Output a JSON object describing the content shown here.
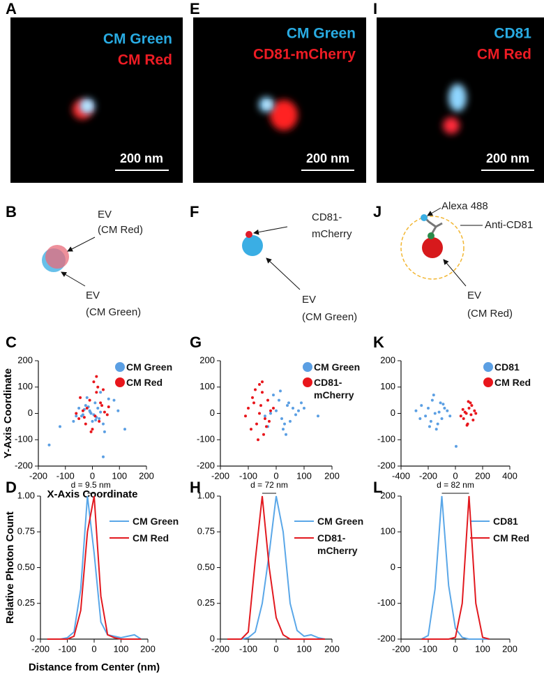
{
  "panel_labels": [
    "A",
    "E",
    "I",
    "B",
    "F",
    "J",
    "C",
    "G",
    "K",
    "D",
    "H",
    "L"
  ],
  "images": [
    {
      "labels": [
        "CM Green",
        "CM Red"
      ],
      "scale_bar": "200 nm"
    },
    {
      "labels": [
        "CM Green",
        "CD81-mCherry"
      ],
      "scale_bar": "200 nm"
    },
    {
      "labels": [
        "CD81",
        "CM Red"
      ],
      "scale_bar": "200 nm"
    }
  ],
  "diagrams": [
    {
      "labels": [
        [
          "EV",
          "(CM Red)"
        ],
        [
          "EV",
          "(CM Green)"
        ]
      ]
    },
    {
      "labels": [
        [
          "CD81-",
          "mCherry"
        ],
        [
          "EV",
          "(CM Green)"
        ]
      ]
    },
    {
      "labels": [
        [
          "Alexa 488"
        ],
        [
          "Anti-CD81"
        ],
        [
          "EV",
          "(CM Red)"
        ]
      ]
    }
  ],
  "chart_data": [
    {
      "type": "scatter",
      "xlabel": "X-Axis Coordinate",
      "ylabel": "Y-Axis Coordinate",
      "xlim": [
        -200,
        200
      ],
      "ylim": [
        -200,
        200
      ],
      "xticks": [
        -200,
        -100,
        0,
        100,
        200
      ],
      "yticks": [
        -200,
        -100,
        0,
        100,
        200
      ],
      "series": [
        {
          "name": "CM Green",
          "color": "#5b9fe3",
          "x": [
            -10,
            5,
            20,
            -25,
            15,
            -5,
            30,
            -40,
            10,
            0,
            -15,
            25,
            -30,
            40,
            -60,
            60,
            -120,
            -160,
            45,
            -20,
            40,
            -8,
            12,
            -35,
            80,
            120,
            -70,
            30,
            -50,
            95
          ],
          "y": [
            10,
            -5,
            20,
            30,
            -15,
            0,
            5,
            -10,
            40,
            -30,
            25,
            -20,
            15,
            -40,
            -10,
            55,
            -50,
            -120,
            -70,
            60,
            -165,
            5,
            -25,
            -5,
            50,
            -60,
            -30,
            80,
            20,
            10
          ]
        },
        {
          "name": "CM Red",
          "color": "#e8161c",
          "x": [
            -20,
            10,
            30,
            -35,
            25,
            -10,
            45,
            -50,
            15,
            5,
            -25,
            35,
            0,
            55,
            -45,
            60,
            20,
            -5,
            40,
            -60,
            15,
            -30
          ],
          "y": [
            20,
            -10,
            40,
            10,
            -30,
            50,
            5,
            -20,
            80,
            120,
            -40,
            30,
            -60,
            -5,
            60,
            25,
            100,
            -70,
            90,
            0,
            140,
            -15
          ]
        }
      ]
    },
    {
      "type": "scatter",
      "xlim": [
        -200,
        200
      ],
      "ylim": [
        -200,
        200
      ],
      "xticks": [
        -200,
        -100,
        0,
        100,
        200
      ],
      "yticks": [
        -200,
        -100,
        0,
        100,
        200
      ],
      "series": [
        {
          "name": "CM Green",
          "color": "#5b9fe3",
          "x": [
            0,
            20,
            40,
            -20,
            10,
            30,
            60,
            -40,
            50,
            80,
            -10,
            25,
            45,
            70,
            100,
            150,
            -30,
            15,
            35,
            90
          ],
          "y": [
            10,
            -20,
            30,
            0,
            50,
            -40,
            20,
            -10,
            -30,
            10,
            70,
            -60,
            40,
            -5,
            20,
            -10,
            -50,
            85,
            -80,
            40
          ]
        },
        {
          "name": "CD81-mCherry",
          "color": "#e8161c",
          "x": [
            -60,
            -80,
            -40,
            -100,
            -50,
            -70,
            -30,
            -90,
            -20,
            -60,
            -45,
            -75,
            -110,
            -35,
            -55,
            -10,
            -85,
            -65,
            -25,
            -50
          ],
          "y": [
            0,
            40,
            -20,
            20,
            80,
            -40,
            50,
            -60,
            10,
            110,
            -80,
            90,
            -10,
            -50,
            30,
            20,
            60,
            -100,
            -30,
            120
          ]
        }
      ]
    },
    {
      "type": "scatter",
      "xlim": [
        -400,
        400
      ],
      "ylim": [
        -200,
        200
      ],
      "xticks": [
        -400,
        -200,
        0,
        200,
        400
      ],
      "yticks": [
        -200,
        -100,
        0,
        100,
        200
      ],
      "series": [
        {
          "name": "CD81",
          "color": "#5b9fe3",
          "x": [
            -150,
            -200,
            -100,
            -250,
            -130,
            -170,
            -60,
            -220,
            -110,
            -180,
            -80,
            -140,
            -290,
            -120,
            -190,
            -40,
            -160,
            -260,
            -90,
            5
          ],
          "y": [
            0,
            20,
            -20,
            30,
            -40,
            50,
            10,
            -10,
            40,
            -30,
            20,
            -60,
            10,
            5,
            -50,
            -10,
            70,
            -20,
            35,
            -125
          ]
        },
        {
          "name": "CM Red",
          "color": "#e8161c",
          "x": [
            80,
            100,
            60,
            120,
            90,
            140,
            40,
            110,
            70,
            130,
            95,
            150,
            85,
            55,
            115
          ],
          "y": [
            0,
            20,
            -20,
            30,
            -40,
            10,
            -10,
            40,
            5,
            -25,
            45,
            0,
            -45,
            15,
            -5
          ]
        }
      ]
    },
    {
      "type": "line",
      "xlabel": "Distance from Center (nm)",
      "ylabel": "Relative Photon Count",
      "annotation": "d = 9.5 nm",
      "xlim": [
        -200,
        200
      ],
      "ylim": [
        0,
        1
      ],
      "xticks": [
        -200,
        -100,
        0,
        100,
        200
      ],
      "yticks": [
        0,
        0.25,
        {
          "value": 0.5,
          "label": "0.50"
        },
        0.75,
        {
          "value": 1,
          "label": "1.00"
        }
      ],
      "x": [
        -175,
        -150,
        -125,
        -100,
        -75,
        -50,
        -25,
        0,
        25,
        50,
        75,
        100,
        125,
        150,
        175
      ],
      "series": [
        {
          "name": "CM Green",
          "color": "#5aa7e8",
          "values": [
            0,
            0,
            0,
            0.01,
            0.05,
            0.35,
            1.0,
            0.6,
            0.12,
            0.03,
            0.02,
            0.01,
            0.02,
            0.03,
            0
          ]
        },
        {
          "name": "CM Red",
          "color": "#e2191f",
          "values": [
            0,
            0,
            0,
            0,
            0.02,
            0.2,
            0.75,
            1.0,
            0.3,
            0.03,
            0.01,
            0,
            0,
            0,
            0
          ]
        }
      ]
    },
    {
      "type": "line",
      "annotation": "d = 72 nm",
      "xlim": [
        -200,
        200
      ],
      "ylim": [
        0,
        1
      ],
      "xticks": [
        -200,
        -100,
        0,
        100,
        200
      ],
      "yticks": [
        0,
        0.25,
        {
          "value": 0.5,
          "label": "0.50"
        },
        0.75,
        {
          "value": 1,
          "label": "1.00"
        }
      ],
      "x": [
        -175,
        -150,
        -125,
        -100,
        -75,
        -50,
        -25,
        0,
        25,
        50,
        75,
        100,
        125,
        150,
        175
      ],
      "series": [
        {
          "name": "CM Green",
          "color": "#5aa7e8",
          "values": [
            0,
            0,
            0,
            0.01,
            0.05,
            0.25,
            0.6,
            1.0,
            0.75,
            0.25,
            0.06,
            0.02,
            0.03,
            0.01,
            0
          ]
        },
        {
          "name": "CD81-mCherry",
          "color": "#e2191f",
          "values": [
            0,
            0,
            0,
            0.05,
            0.55,
            1.0,
            0.5,
            0.15,
            0.03,
            0,
            0,
            0,
            0,
            0,
            0
          ]
        }
      ]
    },
    {
      "type": "line",
      "annotation": "d = 82 nm",
      "xlim": [
        -200,
        200
      ],
      "ylim": [
        -200,
        200
      ],
      "xticks": [
        -200,
        -100,
        0,
        100,
        200
      ],
      "yticks": [
        -200,
        -100,
        0,
        100,
        200
      ],
      "x": [
        -125,
        -100,
        -75,
        -50,
        -25,
        0,
        25,
        50,
        75,
        100,
        125
      ],
      "series": [
        {
          "name": "CD81",
          "color": "#5aa7e8",
          "values": [
            -200,
            -190,
            -60,
            200,
            -50,
            -170,
            -195,
            -200,
            -200,
            -200,
            -200
          ]
        },
        {
          "name": "CM Red",
          "color": "#e2191f",
          "values": [
            -200,
            -200,
            -200,
            -200,
            -200,
            -195,
            -100,
            200,
            -100,
            -195,
            -200
          ]
        }
      ]
    }
  ]
}
